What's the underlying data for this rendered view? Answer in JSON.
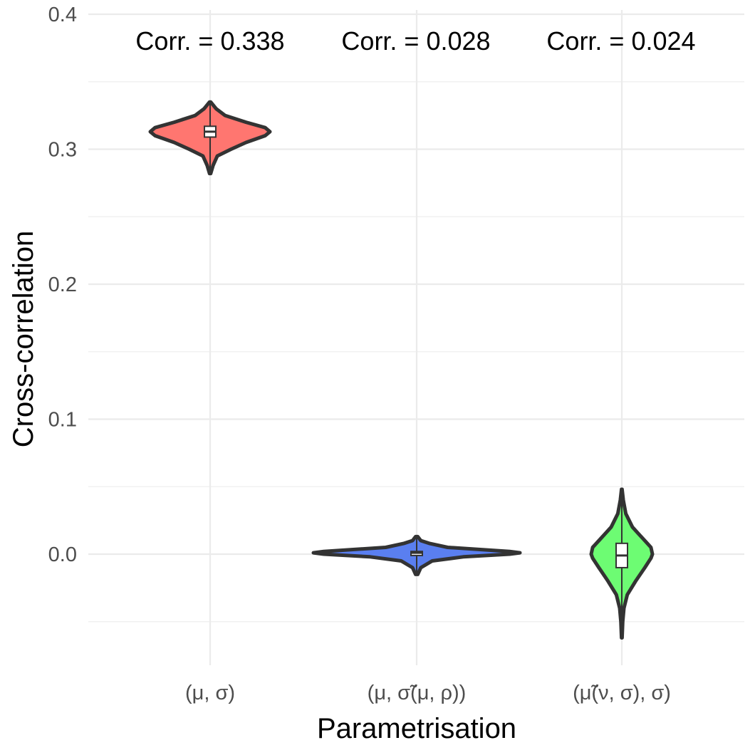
{
  "chart_data": {
    "type": "violin",
    "xlabel": "Parametrisation",
    "ylabel": "Cross-correlation",
    "ylim": [
      -0.08,
      0.4
    ],
    "yticks": [
      0.0,
      0.1,
      0.2,
      0.3,
      0.4
    ],
    "ytick_labels": [
      "0.0",
      "0.1",
      "0.2",
      "0.3",
      "0.4"
    ],
    "grid": true,
    "legend": "none",
    "categories": [
      "(μ, σ)",
      "(μ, σ̃(μ, ρ))",
      "(μ̃(ν, σ), σ)"
    ],
    "annotations": [
      "Corr. = 0.338",
      "Corr. = 0.028",
      "Corr. = 0.024"
    ],
    "series": [
      {
        "colour": "#ff7670",
        "min": 0.282,
        "max": 0.335,
        "q1": 0.309,
        "median": 0.313,
        "q3": 0.317,
        "shape": [
          [
            0.282,
            0.01
          ],
          [
            0.288,
            0.05
          ],
          [
            0.295,
            0.12
          ],
          [
            0.3,
            0.35
          ],
          [
            0.305,
            0.6
          ],
          [
            0.31,
            0.92
          ],
          [
            0.313,
            1.0
          ],
          [
            0.316,
            0.92
          ],
          [
            0.32,
            0.6
          ],
          [
            0.325,
            0.25
          ],
          [
            0.33,
            0.1
          ],
          [
            0.335,
            0.01
          ]
        ]
      },
      {
        "colour": "#5a7ff0",
        "min": -0.015,
        "max": 0.013,
        "q1": -0.001,
        "median": 0.001,
        "q3": 0.002,
        "shape": [
          [
            -0.015,
            0.01
          ],
          [
            -0.01,
            0.04
          ],
          [
            -0.005,
            0.15
          ],
          [
            -0.002,
            0.45
          ],
          [
            0.0,
            0.9
          ],
          [
            0.001,
            1.0
          ],
          [
            0.002,
            0.9
          ],
          [
            0.005,
            0.3
          ],
          [
            0.008,
            0.12
          ],
          [
            0.01,
            0.04
          ],
          [
            0.013,
            0.01
          ]
        ]
      },
      {
        "colour": "#6dfc73",
        "min": -0.062,
        "max": 0.048,
        "q1": -0.01,
        "median": -0.001,
        "q3": 0.008,
        "shape": [
          [
            -0.062,
            0.01
          ],
          [
            -0.05,
            0.03
          ],
          [
            -0.04,
            0.07
          ],
          [
            -0.03,
            0.18
          ],
          [
            -0.02,
            0.45
          ],
          [
            -0.01,
            0.75
          ],
          [
            -0.003,
            0.95
          ],
          [
            0.0,
            1.0
          ],
          [
            0.005,
            0.95
          ],
          [
            0.01,
            0.75
          ],
          [
            0.015,
            0.55
          ],
          [
            0.02,
            0.35
          ],
          [
            0.03,
            0.13
          ],
          [
            0.04,
            0.05
          ],
          [
            0.048,
            0.01
          ]
        ]
      }
    ]
  }
}
